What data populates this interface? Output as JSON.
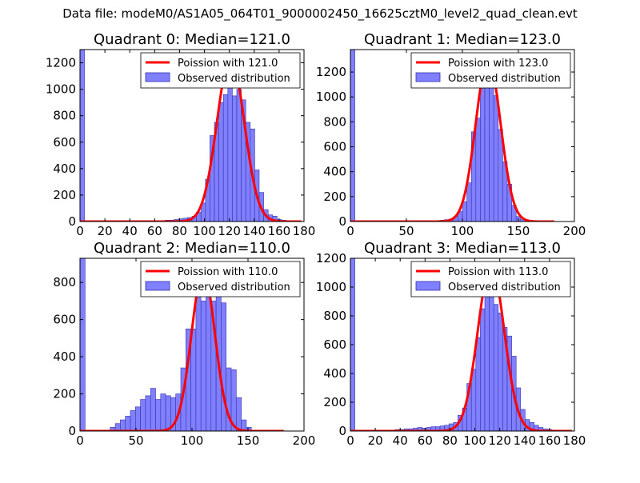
{
  "figure": {
    "suptitle": "Data file: modeM0/AS1A05_064T01_9000002450_16625cztM0_level2_quad_clean.evt"
  },
  "colors": {
    "bar_fill": "#8080ff",
    "bar_edge": "#3333aa",
    "poisson_line": "#ff0000",
    "legend_border": "#000000"
  },
  "chart_data": [
    {
      "type": "bar",
      "title": "Quadrant 0: Median=121.0",
      "xlim": [
        0,
        180
      ],
      "ylim": [
        0,
        1300
      ],
      "xticks": [
        0,
        20,
        40,
        60,
        80,
        100,
        120,
        140,
        160,
        180
      ],
      "yticks": [
        0,
        200,
        400,
        600,
        800,
        1000,
        1200
      ],
      "legend": {
        "location": "upper-right",
        "entries": [
          "Poission with 121.0",
          "Observed distribution"
        ]
      },
      "histogram": {
        "name": "Observed distribution",
        "bin_width": 3.6,
        "bins": [
          [
            0,
            1300
          ],
          [
            3.6,
            5
          ],
          [
            7.2,
            5
          ],
          [
            10.8,
            5
          ],
          [
            14.4,
            5
          ],
          [
            18,
            5
          ],
          [
            21.6,
            5
          ],
          [
            25.2,
            5
          ],
          [
            28.8,
            5
          ],
          [
            32.4,
            5
          ],
          [
            36,
            5
          ],
          [
            39.6,
            5
          ],
          [
            43.2,
            5
          ],
          [
            46.8,
            5
          ],
          [
            50.4,
            5
          ],
          [
            54,
            5
          ],
          [
            57.6,
            5
          ],
          [
            61.2,
            5
          ],
          [
            64.8,
            5
          ],
          [
            68.4,
            10
          ],
          [
            72,
            10
          ],
          [
            75.6,
            15
          ],
          [
            79.2,
            20
          ],
          [
            82.8,
            25
          ],
          [
            86.4,
            30
          ],
          [
            90,
            40
          ],
          [
            93.6,
            70
          ],
          [
            97.2,
            140
          ],
          [
            100.8,
            320
          ],
          [
            104.4,
            650
          ],
          [
            108,
            750
          ],
          [
            111.6,
            900
          ],
          [
            115.2,
            960
          ],
          [
            118.8,
            1200
          ],
          [
            122.4,
            950
          ],
          [
            126,
            1000
          ],
          [
            129.6,
            920
          ],
          [
            133.2,
            750
          ],
          [
            136.8,
            700
          ],
          [
            140.4,
            390
          ],
          [
            144,
            220
          ],
          [
            147.6,
            90
          ],
          [
            151.2,
            50
          ],
          [
            154.8,
            40
          ],
          [
            158.4,
            15
          ],
          [
            162,
            10
          ]
        ]
      },
      "poisson": {
        "name": "Poission with 121.0",
        "lambda": 121.0,
        "peak": 1240,
        "x_range": [
          0,
          178
        ]
      }
    },
    {
      "type": "bar",
      "title": "Quadrant 1: Median=123.0",
      "xlim": [
        0,
        200
      ],
      "ylim": [
        0,
        1380
      ],
      "xticks": [
        0,
        50,
        100,
        150,
        200
      ],
      "yticks": [
        0,
        200,
        400,
        600,
        800,
        1000,
        1200
      ],
      "legend": {
        "location": "upper-right",
        "entries": [
          "Poission with 123.0",
          "Observed distribution"
        ]
      },
      "histogram": {
        "name": "Observed distribution",
        "bin_width": 4.0,
        "bins": [
          [
            0,
            1380
          ],
          [
            4,
            5
          ],
          [
            8,
            5
          ],
          [
            12,
            5
          ],
          [
            16,
            5
          ],
          [
            20,
            5
          ],
          [
            24,
            5
          ],
          [
            28,
            5
          ],
          [
            32,
            5
          ],
          [
            36,
            5
          ],
          [
            40,
            5
          ],
          [
            44,
            5
          ],
          [
            48,
            5
          ],
          [
            52,
            5
          ],
          [
            56,
            5
          ],
          [
            60,
            5
          ],
          [
            64,
            5
          ],
          [
            68,
            5
          ],
          [
            72,
            5
          ],
          [
            76,
            5
          ],
          [
            80,
            10
          ],
          [
            84,
            15
          ],
          [
            88,
            20
          ],
          [
            92,
            40
          ],
          [
            96,
            80
          ],
          [
            100,
            160
          ],
          [
            104,
            310
          ],
          [
            108,
            720
          ],
          [
            112,
            830
          ],
          [
            116,
            1200
          ],
          [
            120,
            1250
          ],
          [
            124,
            1260
          ],
          [
            128,
            1010
          ],
          [
            132,
            740
          ],
          [
            136,
            480
          ],
          [
            140,
            300
          ],
          [
            144,
            130
          ],
          [
            148,
            40
          ],
          [
            152,
            15
          ],
          [
            156,
            10
          ]
        ]
      },
      "poisson": {
        "name": "Poission with 123.0",
        "lambda": 123.0,
        "peak": 1300,
        "x_range": [
          0,
          182
        ]
      }
    },
    {
      "type": "bar",
      "title": "Quadrant 2: Median=110.0",
      "xlim": [
        0,
        200
      ],
      "ylim": [
        0,
        930
      ],
      "xticks": [
        0,
        50,
        100,
        150,
        200
      ],
      "yticks": [
        0,
        200,
        400,
        600,
        800
      ],
      "legend": {
        "location": "upper-right",
        "entries": [
          "Poission with 110.0",
          "Observed distribution"
        ]
      },
      "histogram": {
        "name": "Observed distribution",
        "bin_width": 4.5,
        "bins": [
          [
            0,
            930
          ],
          [
            4.5,
            5
          ],
          [
            9,
            5
          ],
          [
            13.5,
            5
          ],
          [
            18,
            5
          ],
          [
            22.5,
            5
          ],
          [
            27,
            20
          ],
          [
            31.5,
            40
          ],
          [
            36,
            60
          ],
          [
            40.5,
            80
          ],
          [
            45,
            110
          ],
          [
            49.5,
            130
          ],
          [
            54,
            170
          ],
          [
            58.5,
            190
          ],
          [
            63,
            230
          ],
          [
            67.5,
            170
          ],
          [
            72,
            200
          ],
          [
            76.5,
            190
          ],
          [
            81,
            180
          ],
          [
            85.5,
            200
          ],
          [
            90,
            340
          ],
          [
            94.5,
            550
          ],
          [
            99,
            550
          ],
          [
            103.5,
            760
          ],
          [
            108,
            700
          ],
          [
            112.5,
            870
          ],
          [
            117,
            700
          ],
          [
            121.5,
            780
          ],
          [
            126,
            690
          ],
          [
            130.5,
            340
          ],
          [
            135,
            330
          ],
          [
            139.5,
            180
          ],
          [
            144,
            60
          ],
          [
            148.5,
            20
          ],
          [
            153,
            5
          ],
          [
            157.5,
            5
          ]
        ]
      },
      "poisson": {
        "name": "Poission with 110.0",
        "lambda": 110.0,
        "peak": 860,
        "x_range": [
          0,
          182
        ]
      }
    },
    {
      "type": "bar",
      "title": "Quadrant 3: Median=113.0",
      "xlim": [
        0,
        180
      ],
      "ylim": [
        0,
        1200
      ],
      "xticks": [
        0,
        20,
        40,
        60,
        80,
        100,
        120,
        140,
        160,
        180
      ],
      "yticks": [
        0,
        200,
        400,
        600,
        800,
        1000,
        1200
      ],
      "legend": {
        "location": "upper-right",
        "entries": [
          "Poission with 113.0",
          "Observed distribution"
        ]
      },
      "histogram": {
        "name": "Observed distribution",
        "bin_width": 3.6,
        "bins": [
          [
            0,
            1200
          ],
          [
            3.6,
            5
          ],
          [
            7.2,
            5
          ],
          [
            10.8,
            5
          ],
          [
            14.4,
            5
          ],
          [
            18,
            5
          ],
          [
            21.6,
            5
          ],
          [
            25.2,
            5
          ],
          [
            28.8,
            5
          ],
          [
            32.4,
            5
          ],
          [
            36,
            10
          ],
          [
            39.6,
            10
          ],
          [
            43.2,
            15
          ],
          [
            46.8,
            15
          ],
          [
            50.4,
            20
          ],
          [
            54,
            25
          ],
          [
            57.6,
            20
          ],
          [
            61.2,
            25
          ],
          [
            64.8,
            30
          ],
          [
            68.4,
            30
          ],
          [
            72,
            35
          ],
          [
            75.6,
            40
          ],
          [
            79.2,
            50
          ],
          [
            82.8,
            60
          ],
          [
            86.4,
            110
          ],
          [
            90,
            160
          ],
          [
            93.6,
            330
          ],
          [
            97.2,
            430
          ],
          [
            100.8,
            650
          ],
          [
            104.4,
            850
          ],
          [
            108,
            980
          ],
          [
            111.6,
            1150
          ],
          [
            115.2,
            880
          ],
          [
            118.8,
            820
          ],
          [
            122.4,
            720
          ],
          [
            126,
            660
          ],
          [
            129.6,
            520
          ],
          [
            133.2,
            300
          ],
          [
            136.8,
            150
          ],
          [
            140.4,
            80
          ],
          [
            144,
            60
          ],
          [
            147.6,
            40
          ],
          [
            151.2,
            25
          ],
          [
            154.8,
            15
          ],
          [
            158.4,
            10
          ],
          [
            162,
            5
          ]
        ]
      },
      "poisson": {
        "name": "Poission with 113.0",
        "lambda": 113.0,
        "peak": 1150,
        "x_range": [
          0,
          178
        ]
      }
    }
  ]
}
